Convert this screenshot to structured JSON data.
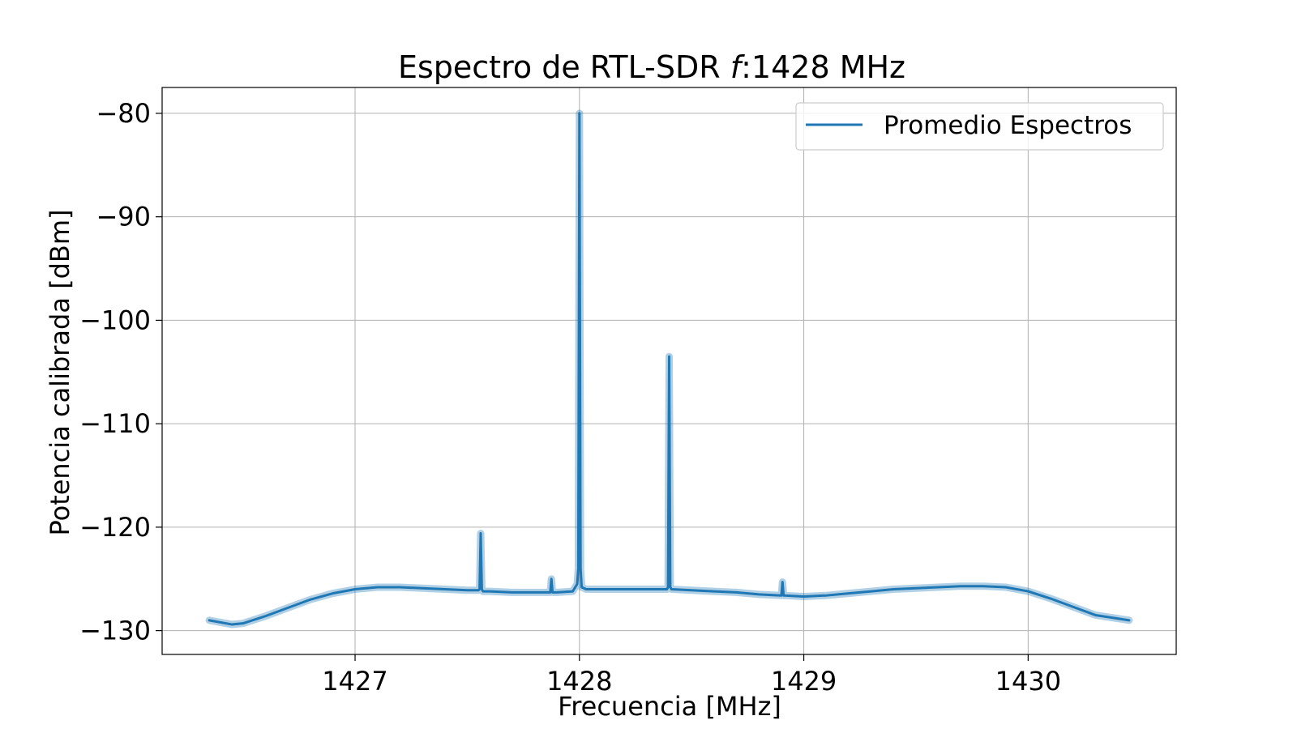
{
  "chart_data": {
    "type": "line",
    "title": {
      "prefix": "Espectro de RTL-SDR ",
      "italic": "f",
      "suffix": ":1428 MHz"
    },
    "xlabel": "Frecuencia [MHz]",
    "ylabel": "Potencia calibrada [dBm]",
    "xlim": [
      1426.14,
      1430.66
    ],
    "ylim": [
      -132.3,
      -77.5
    ],
    "xticks": [
      1427,
      1428,
      1429,
      1430
    ],
    "xtick_labels": [
      "1427",
      "1428",
      "1429",
      "1430"
    ],
    "yticks": [
      -80,
      -90,
      -100,
      -110,
      -120,
      -130
    ],
    "ytick_labels": [
      "−80",
      "−90",
      "−100",
      "−110",
      "−120",
      "−130"
    ],
    "grid": true,
    "legend": {
      "placement": "top-right",
      "entries": [
        "Promedio Espectros"
      ]
    },
    "series": [
      {
        "name": "Promedio Espectros",
        "color": "#1f77b4",
        "x": [
          1426.35,
          1426.45,
          1426.5,
          1426.6,
          1426.7,
          1426.8,
          1426.9,
          1427.0,
          1427.1,
          1427.2,
          1427.3,
          1427.4,
          1427.5,
          1427.55,
          1427.555,
          1427.56,
          1427.565,
          1427.57,
          1427.6,
          1427.7,
          1427.8,
          1427.87,
          1427.875,
          1427.88,
          1427.9,
          1427.97,
          1427.99,
          1427.995,
          1428.0,
          1428.005,
          1428.01,
          1428.03,
          1428.1,
          1428.2,
          1428.3,
          1428.39,
          1428.395,
          1428.4,
          1428.405,
          1428.41,
          1428.5,
          1428.6,
          1428.7,
          1428.8,
          1428.9,
          1428.905,
          1428.91,
          1428.915,
          1429.0,
          1429.1,
          1429.2,
          1429.3,
          1429.4,
          1429.5,
          1429.6,
          1429.7,
          1429.8,
          1429.9,
          1430.0,
          1430.1,
          1430.2,
          1430.3,
          1430.45
        ],
        "y": [
          -129,
          -129.4,
          -129.3,
          -128.6,
          -127.8,
          -127.0,
          -126.4,
          -126.0,
          -125.8,
          -125.8,
          -125.9,
          -126.0,
          -126.1,
          -126.1,
          -126.0,
          -120.6,
          -126.0,
          -126.2,
          -126.2,
          -126.3,
          -126.3,
          -126.3,
          -125.0,
          -126.3,
          -126.3,
          -126.2,
          -125.5,
          -124.0,
          -80.0,
          -124.0,
          -125.8,
          -126.0,
          -126.0,
          -126.0,
          -126.0,
          -126.0,
          -125.8,
          -103.5,
          -125.8,
          -126.0,
          -126.1,
          -126.2,
          -126.3,
          -126.5,
          -126.6,
          -125.3,
          -126.6,
          -126.6,
          -126.7,
          -126.6,
          -126.4,
          -126.2,
          -126.0,
          -125.9,
          -125.8,
          -125.7,
          -125.7,
          -125.8,
          -126.2,
          -126.9,
          -127.7,
          -128.5,
          -129.0
        ]
      }
    ]
  }
}
